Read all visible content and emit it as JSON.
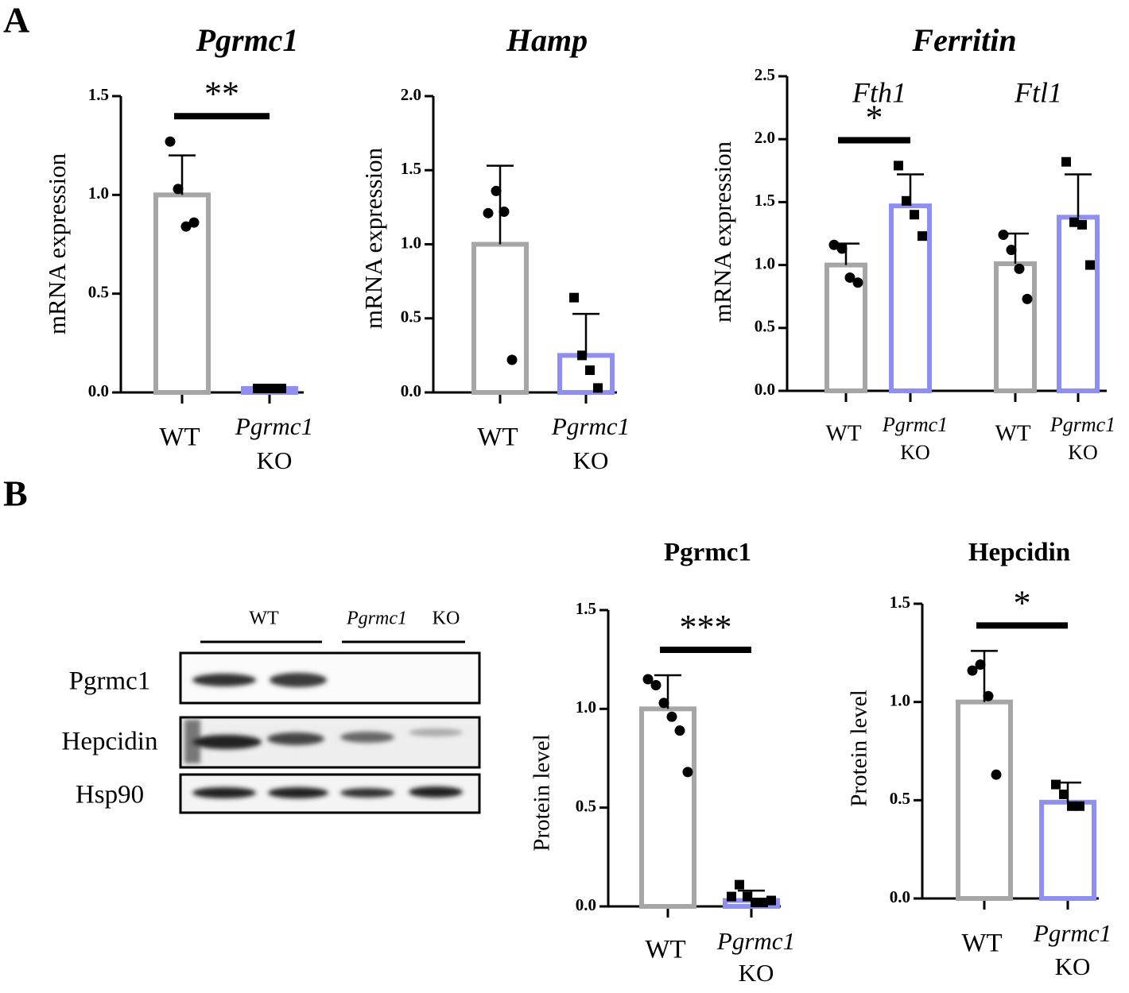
{
  "panels": [
    "A",
    "B"
  ],
  "chart_data": [
    {
      "type": "bar",
      "title": "Pgrmc1",
      "ylabel": "mRNA expression",
      "categories": [
        "WT",
        [
          "Pgrmc1",
          "KO"
        ]
      ],
      "values": [
        1.0,
        0.02
      ],
      "errors": [
        0.2,
        0.01
      ],
      "points": [
        [
          1.27,
          1.03,
          0.84,
          0.86
        ],
        [
          0.02,
          0.02,
          0.02,
          0.02
        ]
      ],
      "markers": [
        "circle",
        "square"
      ],
      "colors": [
        "#a6a6a6",
        "#8f8ff2"
      ],
      "ylim": [
        0,
        1.5
      ],
      "yticks": [
        {
          "value": 0,
          "label": "0.0"
        },
        {
          "value": 0.5,
          "label": "0.5"
        },
        {
          "value": 1,
          "label": "1.0"
        },
        {
          "value": 1.5,
          "label": "1.5"
        }
      ],
      "significance": "**"
    },
    {
      "type": "bar",
      "title": "Hamp",
      "ylabel": "mRNA expression",
      "categories": [
        "WT",
        [
          "Pgrmc1",
          "KO"
        ]
      ],
      "values": [
        1.0,
        0.25
      ],
      "errors": [
        0.53,
        0.28
      ],
      "points": [
        [
          1.21,
          1.36,
          1.22,
          0.22
        ],
        [
          0.64,
          0.25,
          0.15,
          0.03
        ]
      ],
      "markers": [
        "circle",
        "square"
      ],
      "colors": [
        "#a6a6a6",
        "#8f8ff2"
      ],
      "ylim": [
        0,
        2
      ],
      "yticks": [
        {
          "value": 0,
          "label": "0.0"
        },
        {
          "value": 0.5,
          "label": "0.5"
        },
        {
          "value": 1,
          "label": "1.0"
        },
        {
          "value": 1.5,
          "label": "1.5"
        },
        {
          "value": 2,
          "label": "2.0"
        }
      ]
    },
    {
      "type": "bar",
      "title": "Ferritin",
      "ylabel": "mRNA expression",
      "groups": [
        "Fth1",
        "Ftl1"
      ],
      "categories": [
        "WT",
        [
          "Pgrmc1",
          "KO"
        ],
        "WT",
        [
          "Pgrmc1",
          "KO"
        ]
      ],
      "values": [
        1.0,
        1.47,
        1.01,
        1.38
      ],
      "errors": [
        0.17,
        0.25,
        0.24,
        0.34
      ],
      "points": [
        [
          1.16,
          1.13,
          0.9,
          0.86
        ],
        [
          1.79,
          1.51,
          1.4,
          1.23
        ],
        [
          1.24,
          1.12,
          0.97,
          0.73
        ],
        [
          1.82,
          1.34,
          1.32,
          1.0
        ]
      ],
      "markers": [
        "circle",
        "square",
        "circle",
        "square"
      ],
      "colors": [
        "#a6a6a6",
        "#8f8ff2",
        "#a6a6a6",
        "#8f8ff2"
      ],
      "ylim": [
        0,
        2.5
      ],
      "yticks": [
        {
          "value": 0,
          "label": "0.0"
        },
        {
          "value": 0.5,
          "label": "0.5"
        },
        {
          "value": 1,
          "label": "1.0"
        },
        {
          "value": 1.5,
          "label": "1.5"
        },
        {
          "value": 2,
          "label": "2.0"
        },
        {
          "value": 2.5,
          "label": "2.5"
        }
      ],
      "significance": "*"
    },
    {
      "type": "bar",
      "title": "Pgrmc1",
      "ylabel": "Protein level",
      "categories": [
        "WT",
        [
          "Pgrmc1",
          "KO"
        ]
      ],
      "values": [
        1.0,
        0.03
      ],
      "errors": [
        0.17,
        0.05
      ],
      "points": [
        [
          1.15,
          1.12,
          1.03,
          0.96,
          0.89,
          0.68
        ],
        [
          0.05,
          0.11,
          0.05,
          0.02,
          0.02,
          0.03
        ]
      ],
      "markers": [
        "circle",
        "square"
      ],
      "colors": [
        "#a6a6a6",
        "#8f8ff2"
      ],
      "ylim": [
        0,
        1.5
      ],
      "yticks": [
        {
          "value": 0,
          "label": "0.0"
        },
        {
          "value": 0.5,
          "label": "0.5"
        },
        {
          "value": 1,
          "label": "1.0"
        },
        {
          "value": 1.5,
          "label": "1.5"
        }
      ],
      "significance": "***"
    },
    {
      "type": "bar",
      "title": "Hepcidin",
      "ylabel": "Protein level",
      "categories": [
        "WT",
        [
          "Pgrmc1",
          "KO"
        ]
      ],
      "values": [
        1.0,
        0.49
      ],
      "errors": [
        0.26,
        0.1
      ],
      "points": [
        [
          1.16,
          1.19,
          1.03,
          0.63
        ],
        [
          0.58,
          0.53,
          0.47,
          0.47
        ]
      ],
      "markers": [
        "circle",
        "square"
      ],
      "colors": [
        "#a6a6a6",
        "#8f8ff2"
      ],
      "ylim": [
        0,
        1.5
      ],
      "yticks": [
        {
          "value": 0,
          "label": "0.0"
        },
        {
          "value": 0.5,
          "label": "0.5"
        },
        {
          "value": 1,
          "label": "1.0"
        },
        {
          "value": 1.5,
          "label": "1.5"
        }
      ],
      "significance": "*"
    }
  ],
  "blot": {
    "lanes": [
      "WT",
      [
        "Pgrmc1",
        "KO"
      ]
    ],
    "rows": [
      "Pgrmc1",
      "Hepcidin",
      "Hsp90"
    ]
  }
}
